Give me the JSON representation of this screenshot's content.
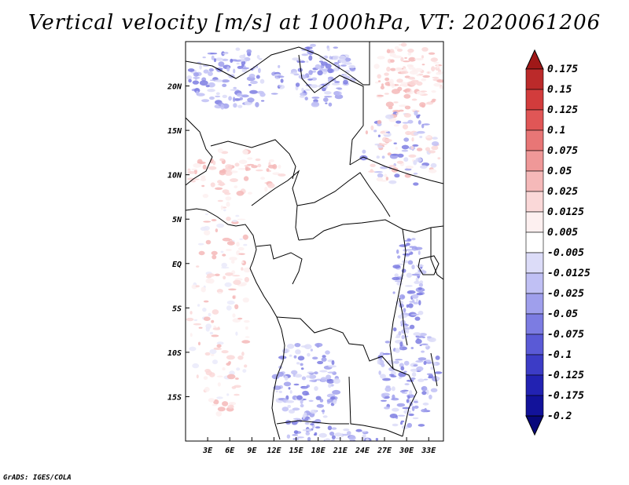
{
  "chart_data": {
    "type": "heatmap",
    "title": "Vertical velocity [m/s] at 1000hPa, VT: 2020061206",
    "variable": "Vertical velocity",
    "units": "m/s",
    "level": "1000hPa",
    "valid_time": "2020061206",
    "x_axis": {
      "range_deg": [
        0,
        35
      ],
      "ticks": [
        {
          "value": 3,
          "label": "3E"
        },
        {
          "value": 6,
          "label": "6E"
        },
        {
          "value": 9,
          "label": "9E"
        },
        {
          "value": 12,
          "label": "12E"
        },
        {
          "value": 15,
          "label": "15E"
        },
        {
          "value": 18,
          "label": "18E"
        },
        {
          "value": 21,
          "label": "21E"
        },
        {
          "value": 24,
          "label": "24E"
        },
        {
          "value": 27,
          "label": "27E"
        },
        {
          "value": 30,
          "label": "30E"
        },
        {
          "value": 33,
          "label": "33E"
        }
      ]
    },
    "y_axis": {
      "range_deg": [
        -20,
        25
      ],
      "ticks": [
        {
          "value": 20,
          "label": "20N"
        },
        {
          "value": 15,
          "label": "15N"
        },
        {
          "value": 10,
          "label": "10N"
        },
        {
          "value": 5,
          "label": "5N"
        },
        {
          "value": 0,
          "label": "EQ"
        },
        {
          "value": -5,
          "label": "5S"
        },
        {
          "value": -10,
          "label": "10S"
        },
        {
          "value": -15,
          "label": "15S"
        }
      ]
    },
    "colorbar": {
      "levels": [
        "0.175",
        "0.15",
        "0.125",
        "0.1",
        "0.075",
        "0.05",
        "0.025",
        "0.0125",
        "0.005",
        "-0.005",
        "-0.0125",
        "-0.025",
        "-0.05",
        "-0.075",
        "-0.1",
        "-0.125",
        "-0.175",
        "-0.2"
      ],
      "colors": [
        "#a01818",
        "#bb2a2a",
        "#d23c3c",
        "#e05656",
        "#e87676",
        "#ef9898",
        "#f5b9b9",
        "#fad8d8",
        "#fdf0f0",
        "#ffffff",
        "#dcdcf8",
        "#c0c0f4",
        "#9f9fec",
        "#7c7ce2",
        "#5a5ad6",
        "#3c3cc6",
        "#2222b2",
        "#12129a",
        "#08087a"
      ],
      "extends": "both"
    }
  },
  "footer": "GrADS: IGES/COLA"
}
